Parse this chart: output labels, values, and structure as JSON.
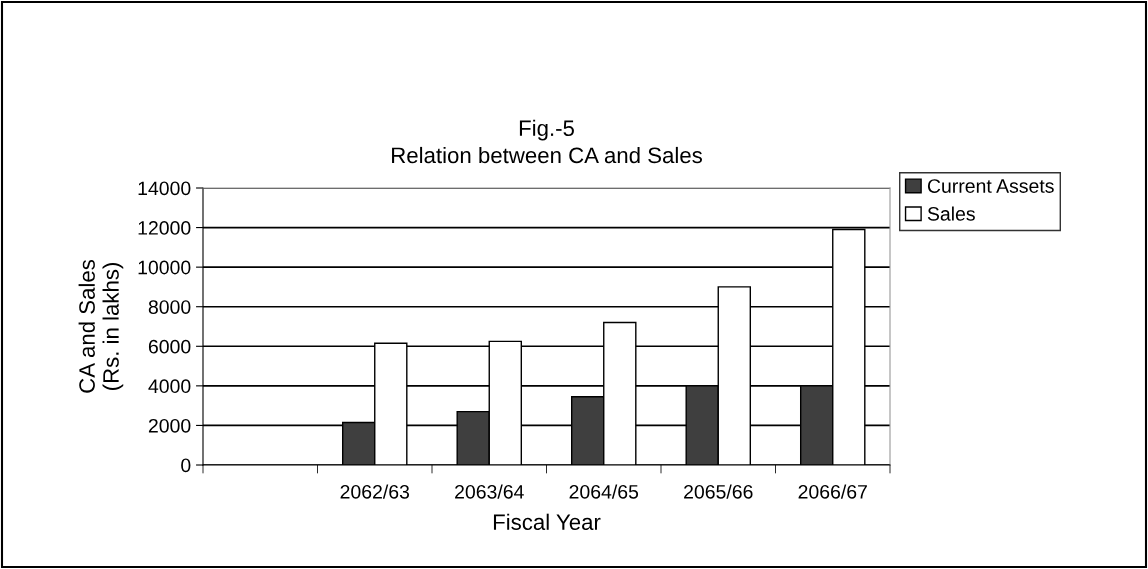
{
  "chart_data": {
    "type": "bar",
    "title": "Fig.-5\nRelation between CA and Sales",
    "xlabel": "Fiscal Year",
    "ylabel": "CA and Sales\n(Rs. in lakhs)",
    "categories": [
      null,
      "2062/63",
      "2063/64",
      "2064/65",
      "2065/66",
      "2066/67"
    ],
    "series": [
      {
        "name": "Current Assets",
        "color": "#3f3f3f",
        "values": [
          null,
          2150,
          2700,
          3450,
          4000,
          4000
        ]
      },
      {
        "name": "Sales",
        "color": "#ffffff",
        "values": [
          null,
          6150,
          6250,
          7200,
          9000,
          11900
        ]
      }
    ],
    "ylim": [
      0,
      14000
    ],
    "yticks": [
      0,
      2000,
      4000,
      6000,
      8000,
      10000,
      12000,
      14000
    ],
    "grid": "y",
    "legend": "right"
  }
}
